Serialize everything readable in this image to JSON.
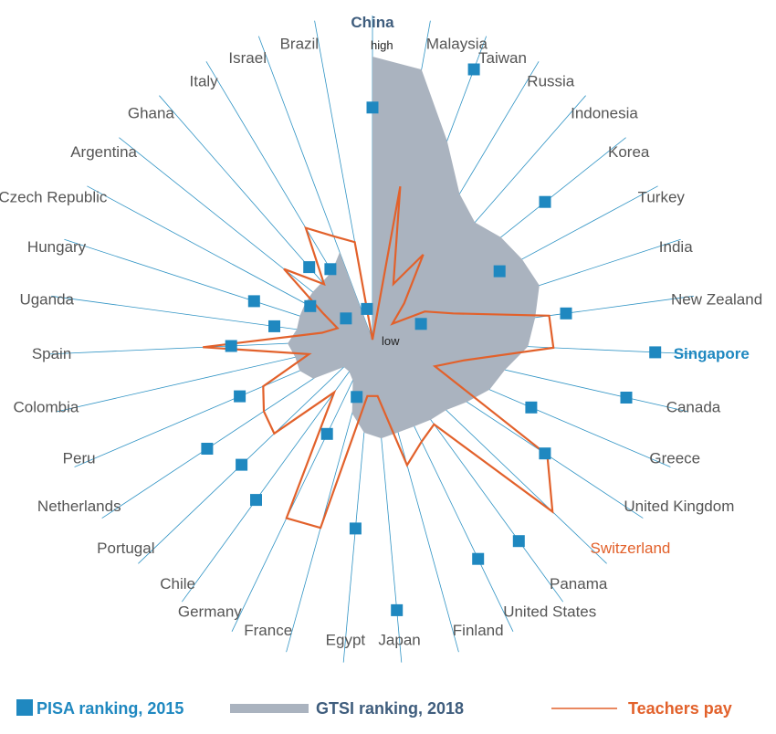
{
  "chart_data": {
    "type": "radar",
    "scale_labels": {
      "high": "high",
      "low": "low"
    },
    "categories": [
      "China",
      "Malaysia",
      "Taiwan",
      "Russia",
      "Indonesia",
      "Korea",
      "Turkey",
      "India",
      "New Zealand",
      "Singapore",
      "Canada",
      "Greece",
      "United Kingdom",
      "Switzerland",
      "Panama",
      "United States",
      "Finland",
      "Japan",
      "Egypt",
      "France",
      "Germany",
      "Chile",
      "Portugal",
      "Netherlands",
      "Peru",
      "Colombia",
      "Spain",
      "Uganda",
      "Hungary",
      "Czech Republic",
      "Argentina",
      "Ghana",
      "Italy",
      "Israel",
      "Brazil"
    ],
    "highlights": {
      "China": "#3f5d7d",
      "Singapore": "#1f88c0",
      "Switzerland": "#e2612b"
    },
    "range": [
      0,
      100
    ],
    "series": [
      {
        "name": "GTSI ranking, 2018",
        "kind": "area",
        "color": "#aab3bf",
        "values": [
          100,
          97,
          75,
          60,
          55,
          58,
          60,
          62,
          58,
          55,
          48,
          45,
          40,
          36,
          35,
          34,
          34,
          35,
          33,
          27,
          16,
          14,
          14,
          25,
          28,
          28,
          30,
          27,
          27,
          27,
          27,
          27,
          28,
          33,
          0
        ]
      },
      {
        "name": "PISA ranking, 2015",
        "kind": "markers",
        "color": "#1f88c0",
        "values": [
          82,
          null,
          102,
          null,
          null,
          78,
          51,
          18,
          69,
          100,
          92,
          61,
          73,
          null,
          88,
          86,
          null,
          96,
          67,
          21,
          37,
          70,
          64,
          70,
          51,
          null,
          50,
          35,
          44,
          25,
          12,
          34,
          29,
          null,
          11
        ]
      },
      {
        "name": "Teachers pay",
        "kind": "line",
        "color": "#e2612b",
        "values": [
          0,
          55,
          21,
          35,
          17,
          9,
          21,
          30,
          63,
          64,
          33,
          24,
          74,
          88,
          37,
          40,
          46,
          20,
          20,
          69,
          70,
          23,
          48,
          46,
          42,
          23,
          60,
          18,
          13,
          20,
          40,
          26,
          46,
          39,
          35
        ]
      }
    ],
    "legend": [
      {
        "label": "PISA ranking, 2015",
        "color": "#1f88c0"
      },
      {
        "label": "GTSI ranking, 2018",
        "color": "#aab3bf"
      },
      {
        "label": "Teachers pay",
        "color": "#e2612b"
      }
    ],
    "legend_position": "bottom"
  }
}
